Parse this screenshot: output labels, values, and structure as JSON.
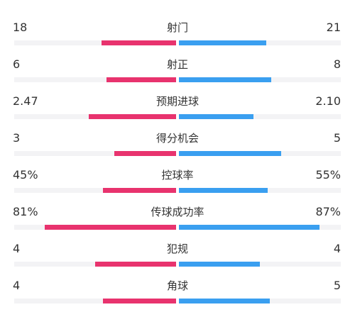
{
  "colors": {
    "home": "#e8336e",
    "away": "#3a9ff0",
    "track": "#f3f3f5"
  },
  "stats": [
    {
      "label": "射门",
      "home": "18",
      "away": "21",
      "home_share": 0.46,
      "away_share": 0.54
    },
    {
      "label": "射正",
      "home": "6",
      "away": "8",
      "home_share": 0.43,
      "away_share": 0.57
    },
    {
      "label": "预期进球",
      "home": "2.47",
      "away": "2.10",
      "home_share": 0.54,
      "away_share": 0.46
    },
    {
      "label": "得分机会",
      "home": "3",
      "away": "5",
      "home_share": 0.38,
      "away_share": 0.63
    },
    {
      "label": "控球率",
      "home": "45%",
      "away": "55%",
      "home_share": 0.45,
      "away_share": 0.55
    },
    {
      "label": "传球成功率",
      "home": "81%",
      "away": "87%",
      "home_share": 0.81,
      "away_share": 0.87
    },
    {
      "label": "犯规",
      "home": "4",
      "away": "4",
      "home_share": 0.5,
      "away_share": 0.5
    },
    {
      "label": "角球",
      "home": "4",
      "away": "5",
      "home_share": 0.45,
      "away_share": 0.56
    }
  ]
}
